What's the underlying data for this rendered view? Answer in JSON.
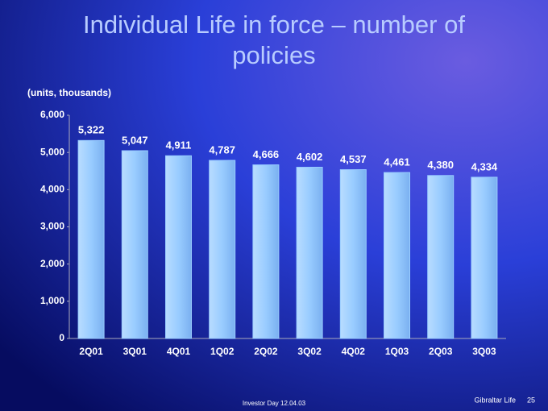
{
  "chart_data": {
    "type": "bar",
    "title": "Individual Life in force – number of policies",
    "y_axis_label": "(units, thousands)",
    "categories": [
      "2Q01",
      "3Q01",
      "4Q01",
      "1Q02",
      "2Q02",
      "3Q02",
      "4Q02",
      "1Q03",
      "2Q03",
      "3Q03"
    ],
    "values": [
      5322,
      5047,
      4911,
      4787,
      4666,
      4602,
      4537,
      4461,
      4380,
      4334
    ],
    "value_labels": [
      "5,322",
      "5,047",
      "4,911",
      "4,787",
      "4,666",
      "4,602",
      "4,537",
      "4,461",
      "4,380",
      "4,334"
    ],
    "color": "#99ccff",
    "ylim": [
      0,
      6000
    ],
    "yticks": [
      0,
      {
        "value": 1000,
        "label": "1,000"
      },
      {
        "value": 2000,
        "label": "2,000"
      },
      {
        "value": 3000,
        "label": "3,000"
      },
      {
        "value": 4000,
        "label": "4,000"
      },
      {
        "value": 5000,
        "label": "5,000"
      },
      {
        "value": 6000,
        "label": "6,000"
      }
    ],
    "grid": false
  },
  "footer": {
    "center": "Investor Day 12.04.03",
    "company": "Gibraltar Life",
    "page": "25"
  }
}
